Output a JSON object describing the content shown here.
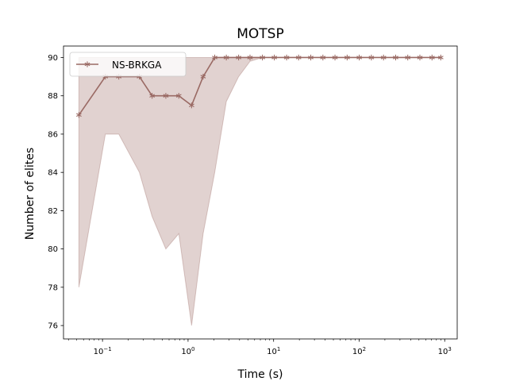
{
  "chart_data": {
    "type": "line",
    "title": "MOTSP",
    "xlabel": "Time (s)",
    "ylabel": "Number of elites",
    "xscale": "log",
    "xlim": [
      0.035,
      1400
    ],
    "ylim": [
      75.3,
      90.6
    ],
    "x_major_ticks": [
      {
        "value": 0.1,
        "base": "10",
        "exp": "−1"
      },
      {
        "value": 1,
        "base": "10",
        "exp": "0"
      },
      {
        "value": 10,
        "base": "10",
        "exp": "1"
      },
      {
        "value": 100,
        "base": "10",
        "exp": "2"
      },
      {
        "value": 1000,
        "base": "10",
        "exp": "3"
      }
    ],
    "y_ticks": [
      76,
      78,
      80,
      82,
      84,
      86,
      88,
      90
    ],
    "legend": {
      "placement": "upper-left"
    },
    "grid": false,
    "series": [
      {
        "name": "NS-BRKGA",
        "color": "#9a6a64",
        "fill_color": "#9a6a64",
        "marker": "asterisk",
        "x": [
          0.053,
          0.108,
          0.155,
          0.27,
          0.38,
          0.55,
          0.78,
          1.1,
          1.5,
          2.05,
          2.8,
          3.9,
          5.3,
          7.4,
          10.2,
          14.2,
          19.6,
          27.2,
          37.7,
          52.2,
          72.4,
          100.3,
          139,
          192.7,
          267,
          370,
          513,
          711,
          900
        ],
        "values": [
          87,
          89,
          89,
          89,
          88,
          88,
          88,
          87.5,
          89,
          90,
          90,
          90,
          90,
          90,
          90,
          90,
          90,
          90,
          90,
          90,
          90,
          90,
          90,
          90,
          90,
          90,
          90,
          90,
          90
        ],
        "band_lower": [
          78,
          86,
          86,
          84,
          81.7,
          80,
          80.8,
          76,
          80.8,
          84,
          87.7,
          89,
          89.8,
          90,
          90,
          90,
          90,
          90,
          90,
          90,
          90,
          90,
          90,
          90,
          90,
          90,
          90,
          90,
          90
        ],
        "band_upper": [
          90,
          90,
          90,
          90,
          90,
          90,
          90,
          90,
          90,
          90,
          90,
          90,
          90,
          90,
          90,
          90,
          90,
          90,
          90,
          90,
          90,
          90,
          90,
          90,
          90,
          90,
          90,
          90,
          90
        ]
      }
    ]
  }
}
